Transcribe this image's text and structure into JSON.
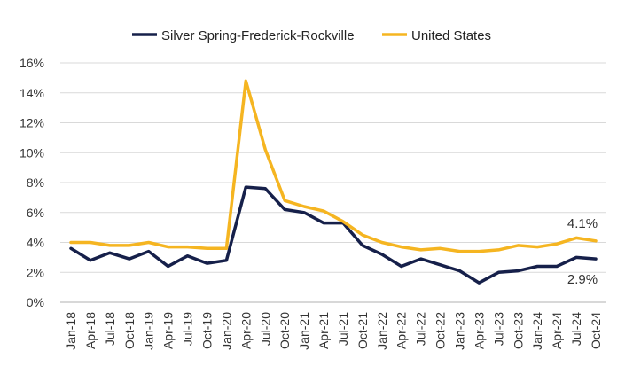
{
  "chart_data": {
    "type": "line",
    "title": "",
    "xlabel": "",
    "ylabel": "",
    "ylim": [
      0,
      16
    ],
    "y_ticks": [
      "0%",
      "2%",
      "4%",
      "6%",
      "8%",
      "10%",
      "12%",
      "14%",
      "16%"
    ],
    "y_tick_values": [
      0,
      2,
      4,
      6,
      8,
      10,
      12,
      14,
      16
    ],
    "x_ticks": [
      "Jan-18",
      "Apr-18",
      "Jul-18",
      "Oct-18",
      "Jan-19",
      "Apr-19",
      "Jul-19",
      "Oct-19",
      "Jan-20",
      "Apr-20",
      "Jul-20",
      "Oct-20",
      "Jan-21",
      "Apr-21",
      "Jul-21",
      "Oct-21",
      "Jan-22",
      "Apr-22",
      "Jul-22",
      "Oct-22",
      "Jan-23",
      "Apr-23",
      "Jul-23",
      "Oct-23",
      "Jan-24",
      "Apr-24",
      "Jul-24",
      "Oct-24"
    ],
    "grid": true,
    "legend_position": "top-center",
    "series": [
      {
        "name": "Silver Spring-Frederick-Rockville",
        "color": "#16204a",
        "values": [
          3.6,
          2.8,
          3.3,
          2.9,
          3.4,
          2.4,
          3.1,
          2.6,
          2.8,
          7.7,
          7.6,
          6.2,
          6.0,
          5.3,
          5.3,
          3.8,
          3.2,
          2.4,
          2.9,
          2.5,
          2.1,
          1.3,
          2.0,
          2.1,
          2.4,
          2.4,
          3.0,
          2.9
        ]
      },
      {
        "name": "United States",
        "color": "#f5b521",
        "values": [
          4.0,
          4.0,
          3.8,
          3.8,
          4.0,
          3.7,
          3.7,
          3.6,
          3.6,
          14.8,
          10.2,
          6.8,
          6.4,
          6.1,
          5.4,
          4.5,
          4.0,
          3.7,
          3.5,
          3.6,
          3.4,
          3.4,
          3.5,
          3.8,
          3.7,
          3.9,
          4.3,
          4.1
        ]
      }
    ],
    "annotations": [
      {
        "series": 1,
        "index": 27,
        "text": "4.1%"
      },
      {
        "series": 0,
        "index": 27,
        "text": "2.9%"
      }
    ]
  }
}
